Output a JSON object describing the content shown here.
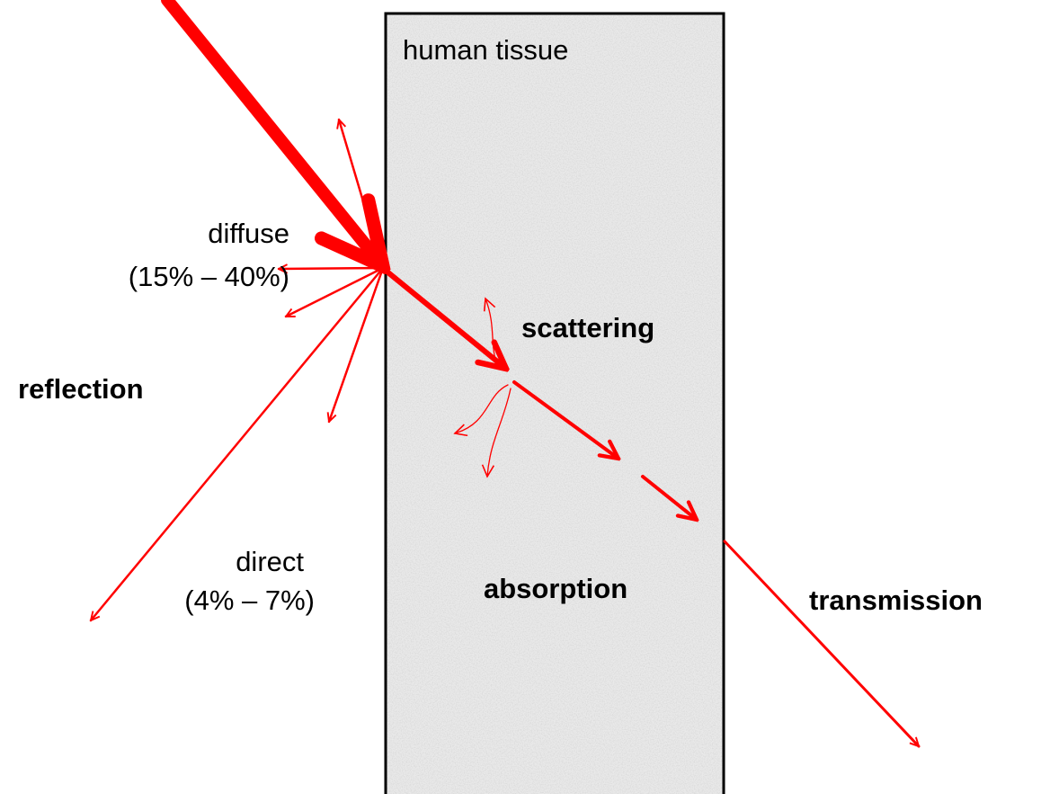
{
  "tissue_label": "human tissue",
  "labels": {
    "diffuse": "diffuse",
    "diffuse_range": "(15% – 40%)",
    "reflection": "reflection",
    "scattering": "scattering",
    "direct": "direct",
    "direct_range": "(4% – 7%)",
    "absorption": "absorption",
    "transmission": "transmission"
  }
}
